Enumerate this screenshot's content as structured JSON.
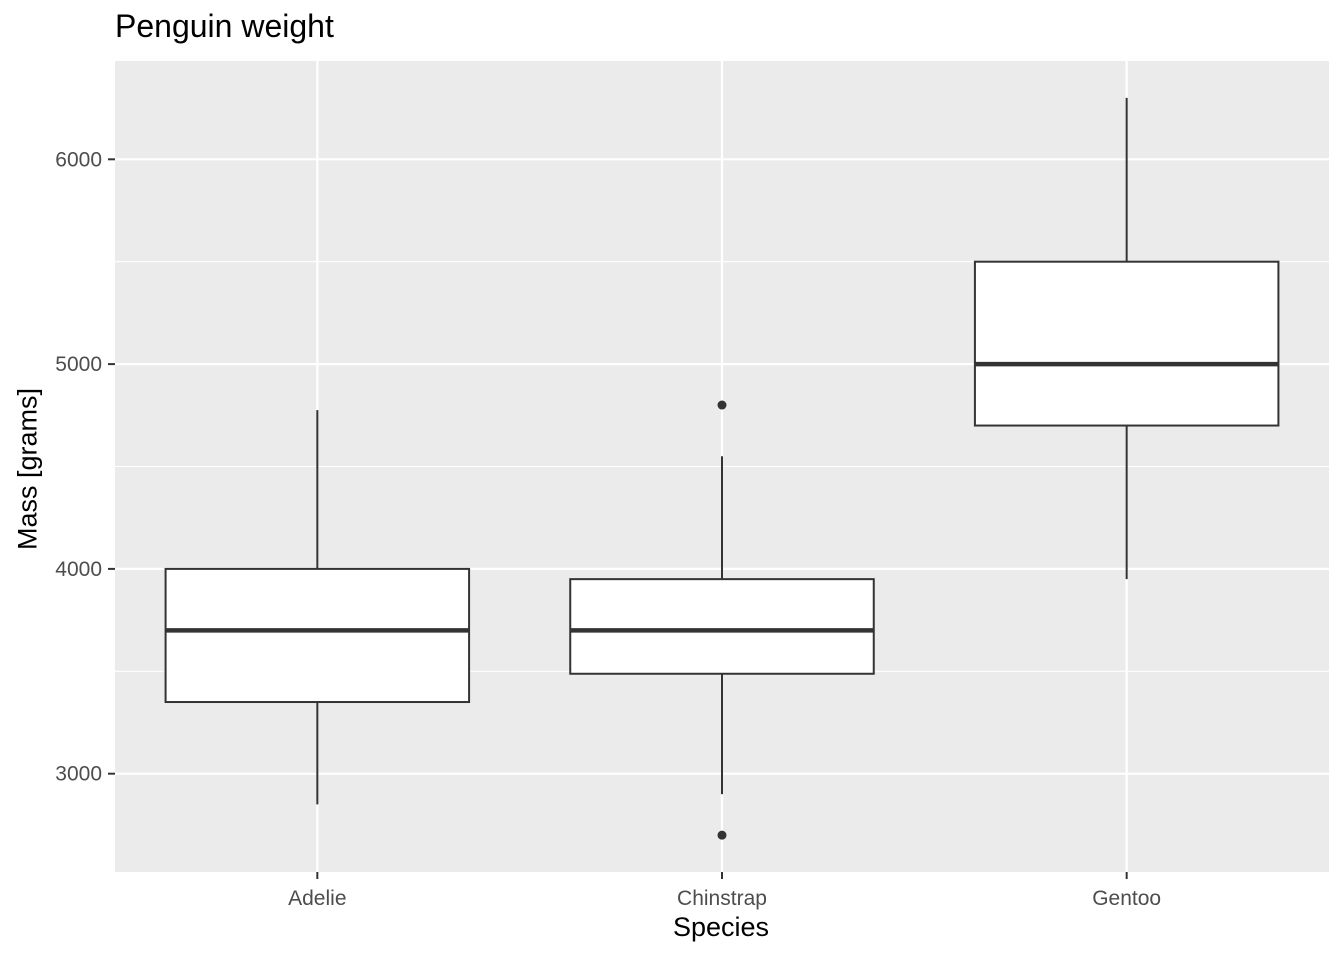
{
  "chart_data": {
    "type": "box",
    "title": "Penguin weight",
    "xlabel": "Species",
    "ylabel": "Mass [grams]",
    "categories": [
      "Adelie",
      "Chinstrap",
      "Gentoo"
    ],
    "ylim": [
      2520,
      6480
    ],
    "yticks": [
      3000,
      4000,
      5000,
      6000
    ],
    "grid": true,
    "legend": "none",
    "boxes": [
      {
        "category": "Adelie",
        "whisker_low": 2850,
        "q1": 3350,
        "median": 3700,
        "q3": 4000,
        "whisker_high": 4775,
        "outliers": []
      },
      {
        "category": "Chinstrap",
        "whisker_low": 2900,
        "q1": 3488,
        "median": 3700,
        "q3": 3950,
        "whisker_high": 4550,
        "outliers": [
          2700,
          4800
        ]
      },
      {
        "category": "Gentoo",
        "whisker_low": 3950,
        "q1": 4700,
        "median": 5000,
        "q3": 5500,
        "whisker_high": 6300,
        "outliers": []
      }
    ],
    "colors": {
      "panel": "#ebebeb",
      "grid": "#ffffff",
      "box_fill": "#ffffff",
      "box_line": "#333333",
      "tick_text": "#4d4d4d"
    }
  }
}
